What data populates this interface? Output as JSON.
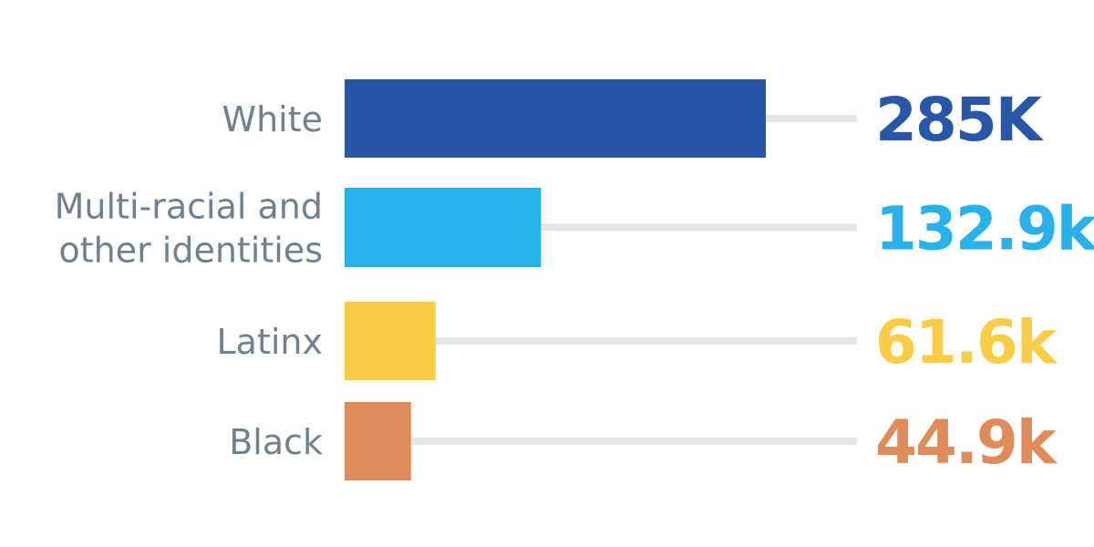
{
  "chart_data": {
    "type": "bar",
    "orientation": "horizontal",
    "categories": [
      "White",
      "Multi-racial and other identities",
      "Latinx",
      "Black"
    ],
    "category_lines": [
      [
        "White"
      ],
      [
        "Multi-racial and",
        "other identities"
      ],
      [
        "Latinx"
      ],
      [
        "Black"
      ]
    ],
    "values": [
      285,
      132.9,
      61.6,
      44.9
    ],
    "unit": "thousands",
    "value_labels": [
      "285K",
      "132.9k",
      "61.6k",
      "44.9k"
    ],
    "colors": [
      "#2757a6",
      "#29b1ec",
      "#fbcd46",
      "#df8b5a"
    ],
    "track_color": "#e6e6e6",
    "label_color": "#6e8190",
    "title": "",
    "xlabel": "",
    "ylabel": "",
    "grid": false,
    "legend": "none"
  }
}
